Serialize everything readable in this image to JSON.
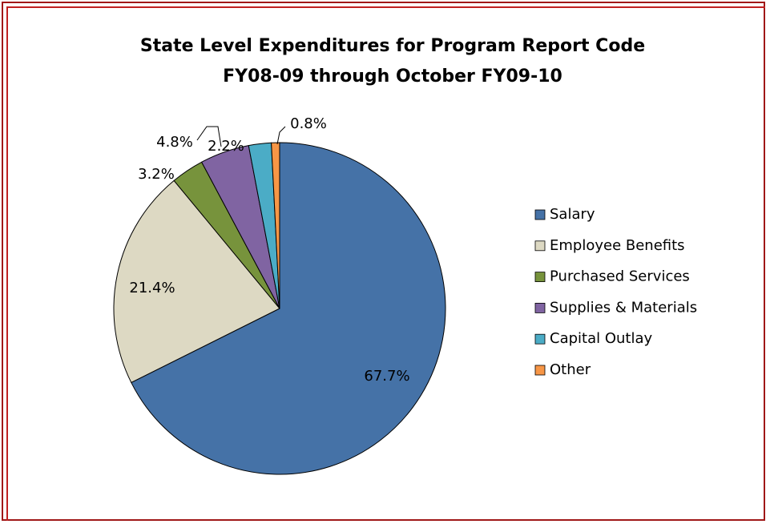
{
  "chart_data": {
    "type": "pie",
    "title": "State Level Expenditures for Program Report Code",
    "subtitle": "FY08-09 through October FY09-10",
    "categories": [
      "Salary",
      "Employee Benefits",
      "Purchased Services",
      "Supplies & Materials",
      "Capital Outlay",
      "Other"
    ],
    "values": [
      67.7,
      21.4,
      3.2,
      4.8,
      2.2,
      0.8
    ],
    "value_labels": [
      "67.7%",
      "21.4%",
      "3.2%",
      "4.8%",
      "2.2%",
      "0.8%"
    ],
    "colors": [
      "#4572a7",
      "#ddd9c3",
      "#77933c",
      "#8064a2",
      "#4bacc6",
      "#f79646"
    ],
    "legend": "right"
  }
}
